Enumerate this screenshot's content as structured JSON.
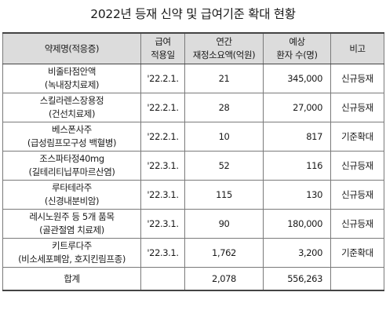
{
  "title": "2022년 등재 신약 및 급여기준 확대 현황",
  "headers": {
    "drug": "약제명(적응증)",
    "date_line1": "급여",
    "date_line2": "적용일",
    "cost_line1": "연간",
    "cost_line2": "재정소요액(억원)",
    "patients_line1": "예상",
    "patients_line2": "환자 수(명)",
    "remark": "비고"
  },
  "rows": [
    {
      "name": "비줄타점안액",
      "indication": "(녹내장치료제)",
      "date": "'22.2.1.",
      "cost": "21",
      "patients": "345,000",
      "remark": "신규등재"
    },
    {
      "name": "스킬라렌스장용정",
      "indication": "(건선치료제)",
      "date": "'22.2.1.",
      "cost": "28",
      "patients": "27,000",
      "remark": "신규등재"
    },
    {
      "name": "베스폰사주",
      "indication": "(급성림프모구성 백혈병)",
      "date": "'22.2.1.",
      "cost": "10",
      "patients": "817",
      "remark": "기준확대"
    },
    {
      "name": "조스파타정40mg",
      "indication": "(길테리티닙푸마르산염)",
      "date": "'22.3.1.",
      "cost": "52",
      "patients": "116",
      "remark": "신규등재"
    },
    {
      "name": "루타테라주",
      "indication": "(신경내분비암)",
      "date": "'22.3.1.",
      "cost": "115",
      "patients": "130",
      "remark": "신규등재"
    },
    {
      "name": "레시노원주 등 5개 품목",
      "indication": "(골관절염 치료제)",
      "date": "'22.3.1.",
      "cost": "90",
      "patients": "180,000",
      "remark": "신규등재"
    },
    {
      "name": "키트루다주",
      "indication": "(비소세포폐암, 호지킨림프종)",
      "date": "'22.3.1.",
      "cost": "1,762",
      "patients": "3,200",
      "remark": "기준확대"
    }
  ],
  "total": {
    "label": "합계",
    "date": "",
    "cost": "2,078",
    "patients": "556,263",
    "remark": ""
  }
}
